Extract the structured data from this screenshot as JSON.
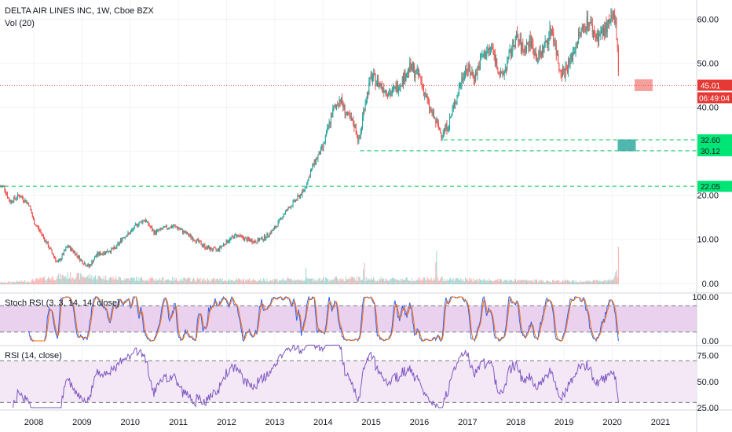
{
  "header": {
    "title": "DELTA AIR LINES INC, 1W, Cboe BZX",
    "volume_label": "Vol (20)"
  },
  "indicators": {
    "stoch_label": "Stoch RSI (3, 3, 14, 14, close)",
    "rsi_label": "RSI (14, close)"
  },
  "price_badges": {
    "current_price": "45.01",
    "countdown": "06:49:04",
    "level_1": "32.60",
    "level_2": "30.12",
    "level_3": "22.05"
  },
  "colors": {
    "up": "#26a69a",
    "down": "#ef5350",
    "grid": "#f0f3fa",
    "axis_text": "#131722",
    "current_line": "#e53935",
    "support_line": "#00c853",
    "support_badge": "#00e676",
    "stoch_k": "#2962ff",
    "stoch_d": "#ff6d00",
    "stoch_band": "#e1bee7",
    "rsi_line": "#7e57c2",
    "rsi_band": "#f3e5f5"
  },
  "chart_data": {
    "type": "candlestick",
    "title": "DELTA AIR LINES INC, 1W, Cboe BZX",
    "x_axis_years": [
      "2008",
      "2009",
      "2010",
      "2011",
      "2012",
      "2013",
      "2014",
      "2015",
      "2016",
      "2017",
      "2018",
      "2019",
      "2020",
      "2021"
    ],
    "x_range": [
      2007.3,
      2021.75
    ],
    "price_axis_ticks": [
      "60.00",
      "50.00",
      "40.00",
      "30.00",
      "20.00",
      "10.00",
      "0.00"
    ],
    "price_range": [
      -2,
      64
    ],
    "stoch_axis_ticks": [
      "100.00",
      "0.00"
    ],
    "stoch_bands": [
      80,
      20
    ],
    "rsi_axis_ticks": [
      "75.00",
      "50.00",
      "25.00"
    ],
    "rsi_bands": [
      70,
      30
    ],
    "price_path": [
      [
        2007.38,
        22.0
      ],
      [
        2007.5,
        18.5
      ],
      [
        2007.7,
        20.0
      ],
      [
        2007.9,
        18.0
      ],
      [
        2008.0,
        14.0
      ],
      [
        2008.15,
        11.5
      ],
      [
        2008.35,
        7.5
      ],
      [
        2008.5,
        4.5
      ],
      [
        2008.7,
        8.5
      ],
      [
        2008.85,
        7.0
      ],
      [
        2009.0,
        5.0
      ],
      [
        2009.15,
        3.8
      ],
      [
        2009.3,
        6.5
      ],
      [
        2009.5,
        7.2
      ],
      [
        2009.7,
        8.0
      ],
      [
        2009.85,
        10.5
      ],
      [
        2010.0,
        11.5
      ],
      [
        2010.15,
        13.5
      ],
      [
        2010.3,
        14.5
      ],
      [
        2010.5,
        11.5
      ],
      [
        2010.7,
        12.5
      ],
      [
        2010.9,
        13.0
      ],
      [
        2011.0,
        12.5
      ],
      [
        2011.2,
        11.0
      ],
      [
        2011.4,
        9.5
      ],
      [
        2011.6,
        8.0
      ],
      [
        2011.8,
        7.5
      ],
      [
        2012.0,
        9.5
      ],
      [
        2012.2,
        11.0
      ],
      [
        2012.4,
        10.0
      ],
      [
        2012.6,
        9.5
      ],
      [
        2012.8,
        10.5
      ],
      [
        2013.0,
        12.5
      ],
      [
        2013.2,
        16.0
      ],
      [
        2013.4,
        18.5
      ],
      [
        2013.6,
        21.0
      ],
      [
        2013.8,
        27.0
      ],
      [
        2014.0,
        31.0
      ],
      [
        2014.2,
        39.0
      ],
      [
        2014.35,
        42.0
      ],
      [
        2014.5,
        38.0
      ],
      [
        2014.65,
        36.0
      ],
      [
        2014.75,
        32.0
      ],
      [
        2014.85,
        40.0
      ],
      [
        2015.0,
        47.0
      ],
      [
        2015.2,
        45.0
      ],
      [
        2015.4,
        43.0
      ],
      [
        2015.6,
        45.5
      ],
      [
        2015.8,
        49.0
      ],
      [
        2016.0,
        47.0
      ],
      [
        2016.2,
        40.0
      ],
      [
        2016.45,
        34.0
      ],
      [
        2016.6,
        36.0
      ],
      [
        2016.8,
        43.5
      ],
      [
        2016.95,
        49.0
      ],
      [
        2017.15,
        47.0
      ],
      [
        2017.3,
        51.5
      ],
      [
        2017.5,
        53.5
      ],
      [
        2017.7,
        46.5
      ],
      [
        2017.85,
        51.0
      ],
      [
        2018.0,
        56.0
      ],
      [
        2018.15,
        53.0
      ],
      [
        2018.3,
        55.0
      ],
      [
        2018.45,
        51.0
      ],
      [
        2018.6,
        54.0
      ],
      [
        2018.75,
        58.0
      ],
      [
        2018.9,
        49.0
      ],
      [
        2019.0,
        48.0
      ],
      [
        2019.15,
        51.0
      ],
      [
        2019.3,
        56.0
      ],
      [
        2019.5,
        60.0
      ],
      [
        2019.65,
        56.0
      ],
      [
        2019.8,
        57.0
      ],
      [
        2019.95,
        59.0
      ],
      [
        2020.05,
        60.5
      ],
      [
        2020.1,
        56.0
      ],
      [
        2020.14,
        45.01
      ]
    ],
    "volume_path": [
      [
        2007.3,
        0.7
      ],
      [
        2007.9,
        1.3
      ],
      [
        2008.3,
        2.5
      ],
      [
        2008.7,
        3.4
      ],
      [
        2009.2,
        3.0
      ],
      [
        2009.7,
        2.4
      ],
      [
        2010.5,
        2.0
      ],
      [
        2011.5,
        1.9
      ],
      [
        2012.5,
        1.7
      ],
      [
        2013.5,
        1.9
      ],
      [
        2014.5,
        2.2
      ],
      [
        2015.5,
        2.0
      ],
      [
        2016.5,
        2.1
      ],
      [
        2017.5,
        1.6
      ],
      [
        2018.5,
        1.4
      ],
      [
        2019.5,
        1.3
      ],
      [
        2020.0,
        1.4
      ],
      [
        2020.14,
        6.0
      ]
    ],
    "volume_spike_years": [
      2013.65,
      2014.85,
      2016.35,
      2020.13
    ],
    "stoch_period_weeks": 14,
    "rsi_period_weeks": 14,
    "horizontal_levels": [
      {
        "value": 45.01,
        "kind": "current_price",
        "x_start": 2007.3
      },
      {
        "value": 32.6,
        "kind": "support",
        "x_start": 2016.5
      },
      {
        "value": 30.12,
        "kind": "support",
        "x_start": 2014.77
      },
      {
        "value": 22.05,
        "kind": "support",
        "x_start": 2007.25
      }
    ],
    "markers": [
      {
        "kind": "sell_box",
        "x": 2020.65,
        "y": 45.01,
        "color": "#ef5350"
      },
      {
        "kind": "buy_box",
        "x": 2020.3,
        "y": 31.36,
        "color": "#26a69a"
      }
    ]
  }
}
